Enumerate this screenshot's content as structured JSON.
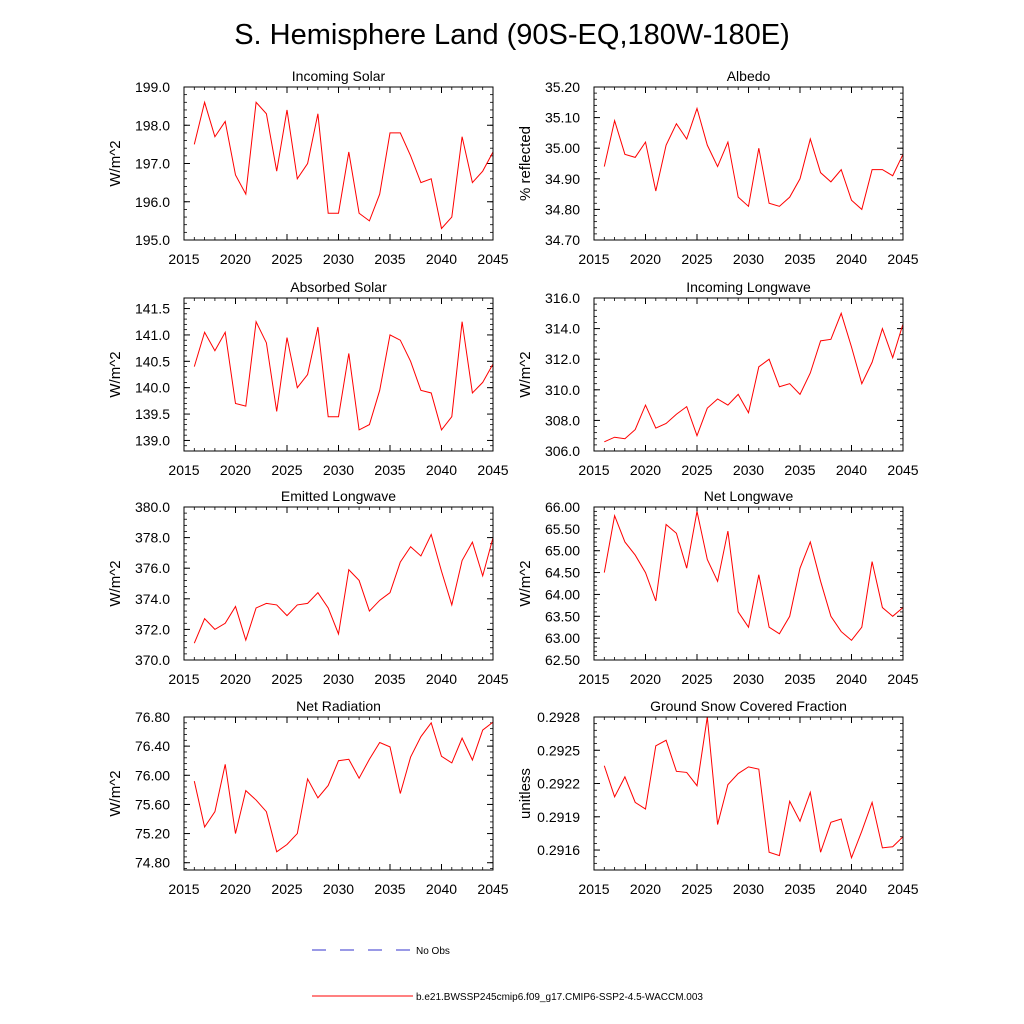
{
  "page_title": "S. Hemisphere Land (90S-EQ,180W-180E)",
  "colors": {
    "model": "#ff0000",
    "obs": "#3333cc",
    "axis": "#000000"
  },
  "legend": {
    "obs_label": "No Obs",
    "model_label": "b.e21.BWSSP245cmip6.f09_g17.CMIP6-SSP2-4.5-WACCM.003"
  },
  "chart_data": [
    {
      "type": "line",
      "title": "Incoming Solar",
      "ylabel": "W/m^2",
      "xlim": [
        2015,
        2045
      ],
      "ylim": [
        195.0,
        199.0
      ],
      "xticks": [
        2015,
        2020,
        2025,
        2030,
        2035,
        2040,
        2045
      ],
      "yticks": [
        195.0,
        196.0,
        197.0,
        198.0,
        199.0
      ],
      "ytick_labels": [
        "195.0",
        "196.0",
        "197.0",
        "198.0",
        "199.0"
      ],
      "x": [
        2016,
        2017,
        2018,
        2019,
        2020,
        2021,
        2022,
        2023,
        2024,
        2025,
        2026,
        2027,
        2028,
        2029,
        2030,
        2031,
        2032,
        2033,
        2034,
        2035,
        2036,
        2037,
        2038,
        2039,
        2040,
        2041,
        2042,
        2043,
        2044,
        2045
      ],
      "values": [
        197.5,
        198.6,
        197.7,
        198.1,
        196.7,
        196.2,
        198.6,
        198.3,
        196.8,
        198.4,
        196.6,
        197.0,
        198.3,
        195.7,
        195.7,
        197.3,
        195.7,
        195.5,
        196.2,
        197.8,
        197.8,
        197.2,
        196.5,
        196.6,
        195.3,
        195.6,
        197.7,
        196.5,
        196.8,
        197.3
      ],
      "series_name": "b.e21.BWSSP245cmip6.f09_g17.CMIP6-SSP2-4.5-WACCM.003"
    },
    {
      "type": "line",
      "title": "Albedo",
      "ylabel": "% reflected",
      "xlim": [
        2015,
        2045
      ],
      "ylim": [
        34.7,
        35.2
      ],
      "xticks": [
        2015,
        2020,
        2025,
        2030,
        2035,
        2040,
        2045
      ],
      "yticks": [
        34.7,
        34.8,
        34.9,
        35.0,
        35.1,
        35.2
      ],
      "ytick_labels": [
        "34.70",
        "34.80",
        "34.90",
        "35.00",
        "35.10",
        "35.20"
      ],
      "x": [
        2016,
        2017,
        2018,
        2019,
        2020,
        2021,
        2022,
        2023,
        2024,
        2025,
        2026,
        2027,
        2028,
        2029,
        2030,
        2031,
        2032,
        2033,
        2034,
        2035,
        2036,
        2037,
        2038,
        2039,
        2040,
        2041,
        2042,
        2043,
        2044,
        2045
      ],
      "values": [
        34.94,
        35.09,
        34.98,
        34.97,
        35.02,
        34.86,
        35.01,
        35.08,
        35.03,
        35.13,
        35.01,
        34.94,
        35.02,
        34.84,
        34.81,
        35.0,
        34.82,
        34.81,
        34.84,
        34.9,
        35.03,
        34.92,
        34.89,
        34.93,
        34.83,
        34.8,
        34.93,
        34.93,
        34.91,
        34.98
      ],
      "series_name": "b.e21.BWSSP245cmip6.f09_g17.CMIP6-SSP2-4.5-WACCM.003"
    },
    {
      "type": "line",
      "title": "Absorbed Solar",
      "ylabel": "W/m^2",
      "xlim": [
        2015,
        2045
      ],
      "ylim": [
        138.8,
        141.7
      ],
      "xticks": [
        2015,
        2020,
        2025,
        2030,
        2035,
        2040,
        2045
      ],
      "yticks": [
        139.0,
        139.5,
        140.0,
        140.5,
        141.0,
        141.5
      ],
      "ytick_labels": [
        "139.0",
        "139.5",
        "140.0",
        "140.5",
        "141.0",
        "141.5"
      ],
      "x": [
        2016,
        2017,
        2018,
        2019,
        2020,
        2021,
        2022,
        2023,
        2024,
        2025,
        2026,
        2027,
        2028,
        2029,
        2030,
        2031,
        2032,
        2033,
        2034,
        2035,
        2036,
        2037,
        2038,
        2039,
        2040,
        2041,
        2042,
        2043,
        2044,
        2045
      ],
      "values": [
        140.4,
        141.05,
        140.7,
        141.05,
        139.7,
        139.65,
        141.25,
        140.85,
        139.55,
        140.95,
        140.0,
        140.25,
        141.15,
        139.45,
        139.45,
        140.65,
        139.2,
        139.3,
        139.95,
        141.0,
        140.9,
        140.5,
        139.95,
        139.9,
        139.2,
        139.45,
        141.25,
        139.9,
        140.1,
        140.45
      ],
      "series_name": "b.e21.BWSSP245cmip6.f09_g17.CMIP6-SSP2-4.5-WACCM.003"
    },
    {
      "type": "line",
      "title": "Incoming Longwave",
      "ylabel": "W/m^2",
      "xlim": [
        2015,
        2045
      ],
      "ylim": [
        306.0,
        316.0
      ],
      "xticks": [
        2015,
        2020,
        2025,
        2030,
        2035,
        2040,
        2045
      ],
      "yticks": [
        306.0,
        308.0,
        310.0,
        312.0,
        314.0,
        316.0
      ],
      "ytick_labels": [
        "306.0",
        "308.0",
        "310.0",
        "312.0",
        "314.0",
        "316.0"
      ],
      "x": [
        2016,
        2017,
        2018,
        2019,
        2020,
        2021,
        2022,
        2023,
        2024,
        2025,
        2026,
        2027,
        2028,
        2029,
        2030,
        2031,
        2032,
        2033,
        2034,
        2035,
        2036,
        2037,
        2038,
        2039,
        2040,
        2041,
        2042,
        2043,
        2044,
        2045
      ],
      "values": [
        306.6,
        306.9,
        306.8,
        307.4,
        309.0,
        307.5,
        307.8,
        308.4,
        308.9,
        307.0,
        308.8,
        309.4,
        309.0,
        309.7,
        308.5,
        311.5,
        312.0,
        310.2,
        310.4,
        309.7,
        311.1,
        313.2,
        313.3,
        315.0,
        312.8,
        310.4,
        311.8,
        314.0,
        312.1,
        314.3
      ],
      "series_name": "b.e21.BWSSP245cmip6.f09_g17.CMIP6-SSP2-4.5-WACCM.003"
    },
    {
      "type": "line",
      "title": "Emitted Longwave",
      "ylabel": "W/m^2",
      "xlim": [
        2015,
        2045
      ],
      "ylim": [
        370.0,
        380.0
      ],
      "xticks": [
        2015,
        2020,
        2025,
        2030,
        2035,
        2040,
        2045
      ],
      "yticks": [
        370.0,
        372.0,
        374.0,
        376.0,
        378.0,
        380.0
      ],
      "ytick_labels": [
        "370.0",
        "372.0",
        "374.0",
        "376.0",
        "378.0",
        "380.0"
      ],
      "x": [
        2016,
        2017,
        2018,
        2019,
        2020,
        2021,
        2022,
        2023,
        2024,
        2025,
        2026,
        2027,
        2028,
        2029,
        2030,
        2031,
        2032,
        2033,
        2034,
        2035,
        2036,
        2037,
        2038,
        2039,
        2040,
        2041,
        2042,
        2043,
        2044,
        2045
      ],
      "values": [
        371.1,
        372.7,
        372.0,
        372.4,
        373.5,
        371.3,
        373.4,
        373.7,
        373.6,
        372.9,
        373.6,
        373.7,
        374.4,
        373.4,
        371.7,
        375.9,
        375.2,
        373.2,
        373.9,
        374.4,
        376.4,
        377.4,
        376.8,
        378.2,
        375.8,
        373.6,
        376.5,
        377.7,
        375.5,
        378.0
      ],
      "series_name": "b.e21.BWSSP245cmip6.f09_g17.CMIP6-SSP2-4.5-WACCM.003"
    },
    {
      "type": "line",
      "title": "Net Longwave",
      "ylabel": "W/m^2",
      "xlim": [
        2015,
        2045
      ],
      "ylim": [
        62.5,
        66.0
      ],
      "xticks": [
        2015,
        2020,
        2025,
        2030,
        2035,
        2040,
        2045
      ],
      "yticks": [
        62.5,
        63.0,
        63.5,
        64.0,
        64.5,
        65.0,
        65.5,
        66.0
      ],
      "ytick_labels": [
        "62.50",
        "63.00",
        "63.50",
        "64.00",
        "64.50",
        "65.00",
        "65.50",
        "66.00"
      ],
      "x": [
        2016,
        2017,
        2018,
        2019,
        2020,
        2021,
        2022,
        2023,
        2024,
        2025,
        2026,
        2027,
        2028,
        2029,
        2030,
        2031,
        2032,
        2033,
        2034,
        2035,
        2036,
        2037,
        2038,
        2039,
        2040,
        2041,
        2042,
        2043,
        2044,
        2045
      ],
      "values": [
        64.5,
        65.8,
        65.2,
        64.9,
        64.5,
        63.85,
        65.6,
        65.4,
        64.6,
        65.9,
        64.8,
        64.3,
        65.45,
        63.6,
        63.25,
        64.45,
        63.25,
        63.1,
        63.5,
        64.6,
        65.2,
        64.3,
        63.5,
        63.15,
        62.95,
        63.25,
        64.75,
        63.7,
        63.5,
        63.7
      ],
      "series_name": "b.e21.BWSSP245cmip6.f09_g17.CMIP6-SSP2-4.5-WACCM.003"
    },
    {
      "type": "line",
      "title": "Net Radiation",
      "ylabel": "W/m^2",
      "xlim": [
        2015,
        2045
      ],
      "ylim": [
        74.7,
        76.8
      ],
      "xticks": [
        2015,
        2020,
        2025,
        2030,
        2035,
        2040,
        2045
      ],
      "yticks": [
        74.8,
        75.2,
        75.6,
        76.0,
        76.4,
        76.8
      ],
      "ytick_labels": [
        "74.80",
        "75.20",
        "75.60",
        "76.00",
        "76.40",
        "76.80"
      ],
      "x": [
        2016,
        2017,
        2018,
        2019,
        2020,
        2021,
        2022,
        2023,
        2024,
        2025,
        2026,
        2027,
        2028,
        2029,
        2030,
        2031,
        2032,
        2033,
        2034,
        2035,
        2036,
        2037,
        2038,
        2039,
        2040,
        2041,
        2042,
        2043,
        2044,
        2045
      ],
      "values": [
        75.92,
        75.29,
        75.5,
        76.15,
        75.2,
        75.79,
        75.66,
        75.5,
        74.95,
        75.05,
        75.2,
        75.95,
        75.69,
        75.86,
        76.2,
        76.22,
        75.96,
        76.22,
        76.45,
        76.39,
        75.75,
        76.25,
        76.53,
        76.72,
        76.26,
        76.17,
        76.51,
        76.21,
        76.62,
        76.73
      ],
      "series_name": "b.e21.BWSSP245cmip6.f09_g17.CMIP6-SSP2-4.5-WACCM.003"
    },
    {
      "type": "line",
      "title": "Ground Snow Covered Fraction",
      "ylabel": "unitless",
      "xlim": [
        2015,
        2045
      ],
      "ylim": [
        0.29142,
        0.2928
      ],
      "xticks": [
        2015,
        2020,
        2025,
        2030,
        2035,
        2040,
        2045
      ],
      "yticks": [
        0.2916,
        0.2919,
        0.2922,
        0.2925,
        0.2928
      ],
      "ytick_labels": [
        "0.2916",
        "0.2919",
        "0.2922",
        "0.2925",
        "0.2928"
      ],
      "x": [
        2016,
        2017,
        2018,
        2019,
        2020,
        2021,
        2022,
        2023,
        2024,
        2025,
        2026,
        2027,
        2028,
        2029,
        2030,
        2031,
        2032,
        2033,
        2034,
        2035,
        2036,
        2037,
        2038,
        2039,
        2040,
        2041,
        2042,
        2043,
        2044,
        2045
      ],
      "values": [
        0.29236,
        0.29208,
        0.29226,
        0.29203,
        0.29197,
        0.29254,
        0.29259,
        0.29231,
        0.2923,
        0.29218,
        0.2928,
        0.29183,
        0.29219,
        0.29229,
        0.29235,
        0.29233,
        0.29158,
        0.29155,
        0.29204,
        0.29186,
        0.29212,
        0.29158,
        0.29185,
        0.29188,
        0.29153,
        0.29177,
        0.29203,
        0.29162,
        0.29163,
        0.29172
      ],
      "series_name": "b.e21.BWSSP245cmip6.f09_g17.CMIP6-SSP2-4.5-WACCM.003"
    }
  ]
}
